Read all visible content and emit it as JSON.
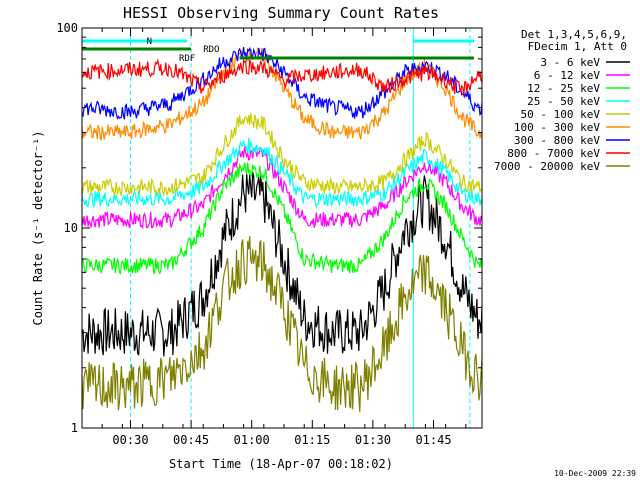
{
  "chart_data": {
    "type": "line",
    "title": "HESSI Observing Summary Count Rates",
    "xlabel": "Start Time (18-Apr-07 00:18:02)",
    "ylabel": "Count Rate (s⁻¹ detector⁻¹)",
    "xlim": [
      "00:18",
      "01:57"
    ],
    "ylim": [
      1,
      100
    ],
    "yscale": "log",
    "x_ticks": [
      "00:30",
      "00:45",
      "01:00",
      "01:15",
      "01:30",
      "01:45"
    ],
    "y_ticks": [
      "1",
      "10",
      "100"
    ],
    "grid": false,
    "legend": {
      "position": "right",
      "header": [
        "Det 1,3,4,5,6,9,",
        "FDecim 1, Att 0"
      ]
    },
    "series": [
      {
        "name": "3 - 6 keV",
        "color": "#000000",
        "x": [
          "00:18",
          "00:30",
          "00:40",
          "00:48",
          "00:53",
          "00:58",
          "01:03",
          "01:08",
          "01:13",
          "01:20",
          "01:27",
          "01:33",
          "01:38",
          "01:43",
          "01:48",
          "01:52",
          "01:56"
        ],
        "values": [
          3,
          3,
          3,
          4.5,
          9,
          15,
          14,
          7,
          3.5,
          3,
          3,
          5,
          10,
          14,
          9,
          5,
          3.5
        ]
      },
      {
        "name": "6 - 12 keV",
        "color": "#ff00ff",
        "x": [
          "00:18",
          "00:30",
          "00:40",
          "00:48",
          "00:53",
          "00:58",
          "01:03",
          "01:08",
          "01:13",
          "01:20",
          "01:27",
          "01:33",
          "01:38",
          "01:43",
          "01:48",
          "01:52",
          "01:56"
        ],
        "values": [
          11,
          11,
          11,
          13,
          18,
          24,
          23,
          16,
          11,
          11,
          11,
          13,
          17,
          21,
          17,
          13,
          11
        ]
      },
      {
        "name": "12 - 25 keV",
        "color": "#00ff00",
        "x": [
          "00:18",
          "00:30",
          "00:40",
          "00:48",
          "00:53",
          "00:58",
          "01:03",
          "01:08",
          "01:13",
          "01:20",
          "01:27",
          "01:33",
          "01:38",
          "01:43",
          "01:48",
          "01:52",
          "01:56"
        ],
        "values": [
          6.5,
          6.5,
          6.5,
          10,
          16,
          20,
          19,
          12,
          7,
          6.5,
          6.5,
          9,
          14,
          17,
          13,
          9,
          6.5
        ]
      },
      {
        "name": "25 - 50 keV",
        "color": "#00ffff",
        "x": [
          "00:18",
          "00:30",
          "00:40",
          "00:48",
          "00:53",
          "00:58",
          "01:03",
          "01:08",
          "01:13",
          "01:20",
          "01:27",
          "01:33",
          "01:38",
          "01:43",
          "01:48",
          "01:52",
          "01:56"
        ],
        "values": [
          14,
          14,
          14,
          16,
          21,
          26,
          25,
          19,
          14,
          14,
          14,
          15,
          19,
          23,
          19,
          15,
          14
        ]
      },
      {
        "name": "50 - 100 keV",
        "color": "#cccc00",
        "x": [
          "00:18",
          "00:30",
          "00:40",
          "00:48",
          "00:53",
          "00:58",
          "01:03",
          "01:08",
          "01:13",
          "01:20",
          "01:27",
          "01:33",
          "01:38",
          "01:43",
          "01:48",
          "01:52",
          "01:56"
        ],
        "values": [
          16,
          16,
          16,
          18,
          26,
          36,
          33,
          22,
          17,
          16,
          16,
          17,
          22,
          28,
          22,
          17,
          16
        ]
      },
      {
        "name": "100 - 300 keV",
        "color": "#ff8c00",
        "x": [
          "00:18",
          "00:30",
          "00:40",
          "00:48",
          "00:53",
          "00:58",
          "01:03",
          "01:08",
          "01:13",
          "01:20",
          "01:27",
          "01:33",
          "01:38",
          "01:43",
          "01:48",
          "01:52",
          "01:56"
        ],
        "values": [
          30,
          30,
          33,
          42,
          60,
          75,
          72,
          50,
          35,
          30,
          30,
          38,
          55,
          65,
          50,
          36,
          30
        ]
      },
      {
        "name": "300 - 800 keV",
        "color": "#0000ff",
        "x": [
          "00:18",
          "00:30",
          "00:40",
          "00:48",
          "00:53",
          "00:58",
          "01:03",
          "01:08",
          "01:13",
          "01:20",
          "01:27",
          "01:33",
          "01:38",
          "01:43",
          "01:48",
          "01:52",
          "01:56"
        ],
        "values": [
          40,
          38,
          42,
          55,
          68,
          75,
          74,
          60,
          45,
          40,
          38,
          48,
          60,
          65,
          58,
          48,
          40
        ]
      },
      {
        "name": "800 - 7000 keV",
        "color": "#ff0000",
        "x": [
          "00:18",
          "00:30",
          "00:40",
          "00:48",
          "00:53",
          "00:58",
          "01:03",
          "01:08",
          "01:13",
          "01:20",
          "01:27",
          "01:33",
          "01:38",
          "01:43",
          "01:48",
          "01:52",
          "01:56"
        ],
        "values": [
          60,
          62,
          63,
          50,
          58,
          65,
          63,
          55,
          58,
          60,
          62,
          50,
          56,
          60,
          55,
          48,
          58
        ]
      },
      {
        "name": "7000 - 20000 keV",
        "color": "#808000",
        "x": [
          "00:18",
          "00:30",
          "00:40",
          "00:48",
          "00:53",
          "00:58",
          "01:03",
          "01:08",
          "01:13",
          "01:20",
          "01:27",
          "01:33",
          "01:38",
          "01:43",
          "01:48",
          "01:52",
          "01:56"
        ],
        "values": [
          1.6,
          1.6,
          1.8,
          2.5,
          5,
          7,
          6.5,
          4,
          2,
          1.6,
          1.6,
          2.5,
          4.5,
          6,
          4,
          2.5,
          1.8
        ]
      }
    ],
    "annotations": [
      {
        "label": "N",
        "color": "#00ffff"
      },
      {
        "label": "RDF",
        "color": "#008000"
      },
      {
        "label": "RDO",
        "color": "#008000"
      }
    ],
    "footer_date": "10-Dec-2009 22:39"
  }
}
